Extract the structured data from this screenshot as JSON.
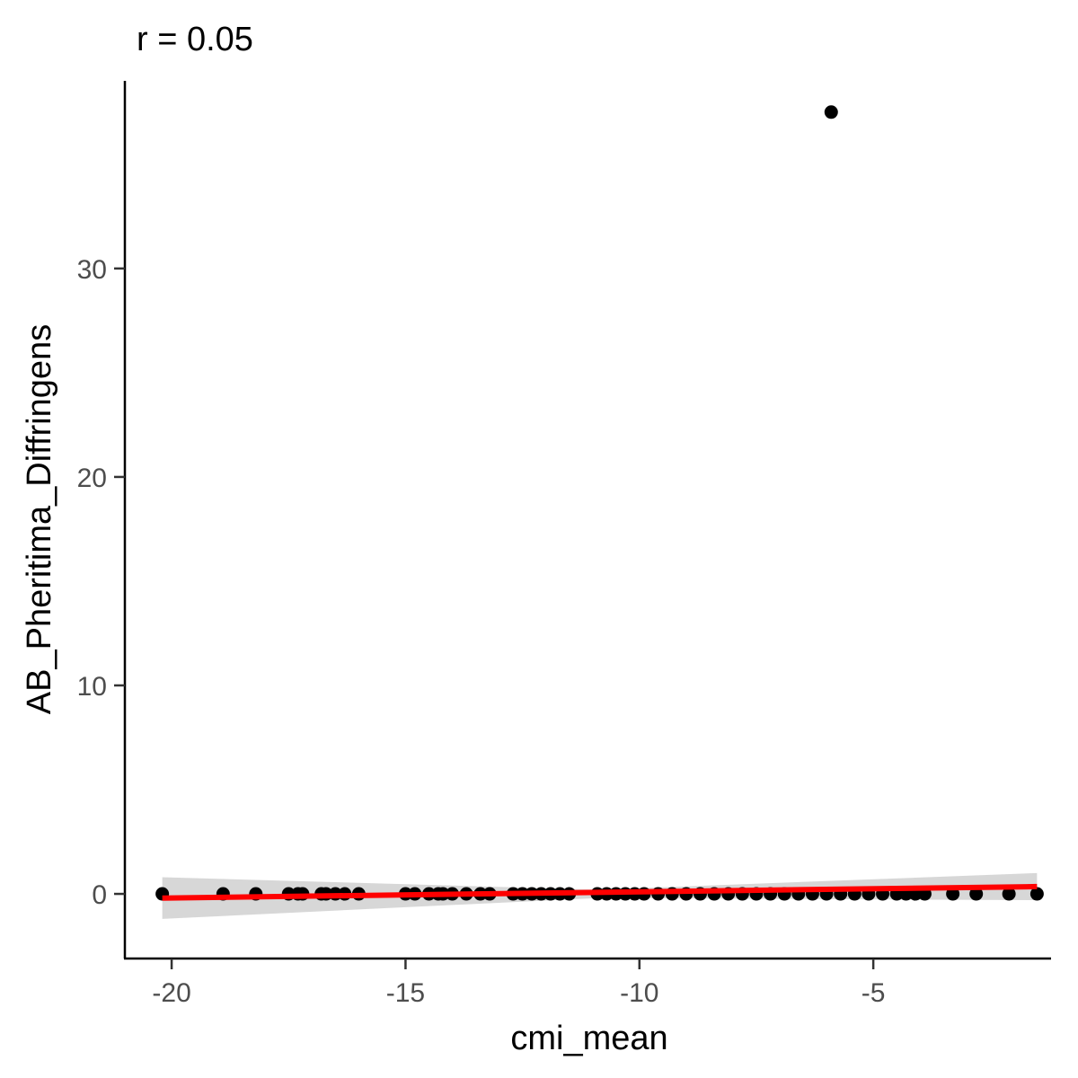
{
  "chart_data": {
    "type": "scatter",
    "title": "r = 0.05",
    "xlabel": "cmi_mean",
    "ylabel": "AB_Pheritima_Diffringens",
    "xlim": [
      -21.0,
      -1.2
    ],
    "ylim": [
      -3.1,
      39.0
    ],
    "xticks": [
      -20,
      -15,
      -10,
      -5
    ],
    "xtick_labels": [
      "-20",
      "-15",
      "-10",
      "-5"
    ],
    "yticks": [
      0,
      10,
      20,
      30
    ],
    "ytick_labels": [
      "0",
      "10",
      "20",
      "30"
    ],
    "grid": false,
    "legend": "none",
    "point_color": "#000000",
    "points": [
      {
        "x": -20.2,
        "y": 0
      },
      {
        "x": -18.9,
        "y": 0
      },
      {
        "x": -18.2,
        "y": 0
      },
      {
        "x": -17.5,
        "y": 0
      },
      {
        "x": -17.3,
        "y": 0
      },
      {
        "x": -17.2,
        "y": 0
      },
      {
        "x": -16.8,
        "y": 0
      },
      {
        "x": -16.7,
        "y": 0
      },
      {
        "x": -16.5,
        "y": 0
      },
      {
        "x": -16.3,
        "y": 0
      },
      {
        "x": -16.0,
        "y": 0
      },
      {
        "x": -15.0,
        "y": 0
      },
      {
        "x": -14.8,
        "y": 0
      },
      {
        "x": -14.5,
        "y": 0
      },
      {
        "x": -14.3,
        "y": 0
      },
      {
        "x": -14.2,
        "y": 0
      },
      {
        "x": -14.0,
        "y": 0
      },
      {
        "x": -13.7,
        "y": 0
      },
      {
        "x": -13.4,
        "y": 0
      },
      {
        "x": -13.2,
        "y": 0
      },
      {
        "x": -12.7,
        "y": 0
      },
      {
        "x": -12.5,
        "y": 0
      },
      {
        "x": -12.3,
        "y": 0
      },
      {
        "x": -12.1,
        "y": 0
      },
      {
        "x": -11.9,
        "y": 0
      },
      {
        "x": -11.7,
        "y": 0
      },
      {
        "x": -11.5,
        "y": 0
      },
      {
        "x": -10.9,
        "y": 0
      },
      {
        "x": -10.7,
        "y": 0
      },
      {
        "x": -10.5,
        "y": 0
      },
      {
        "x": -10.3,
        "y": 0
      },
      {
        "x": -10.1,
        "y": 0
      },
      {
        "x": -9.9,
        "y": 0
      },
      {
        "x": -9.6,
        "y": 0
      },
      {
        "x": -9.3,
        "y": 0
      },
      {
        "x": -9.0,
        "y": 0
      },
      {
        "x": -8.7,
        "y": 0
      },
      {
        "x": -8.4,
        "y": 0
      },
      {
        "x": -8.1,
        "y": 0
      },
      {
        "x": -7.8,
        "y": 0
      },
      {
        "x": -7.5,
        "y": 0
      },
      {
        "x": -7.2,
        "y": 0
      },
      {
        "x": -6.9,
        "y": 0
      },
      {
        "x": -6.6,
        "y": 0
      },
      {
        "x": -6.3,
        "y": 0
      },
      {
        "x": -6.0,
        "y": 0
      },
      {
        "x": -5.7,
        "y": 0
      },
      {
        "x": -5.4,
        "y": 0
      },
      {
        "x": -5.1,
        "y": 0
      },
      {
        "x": -4.8,
        "y": 0
      },
      {
        "x": -4.5,
        "y": 0
      },
      {
        "x": -4.3,
        "y": 0
      },
      {
        "x": -4.1,
        "y": 0
      },
      {
        "x": -3.9,
        "y": 0
      },
      {
        "x": -3.3,
        "y": 0
      },
      {
        "x": -2.8,
        "y": 0
      },
      {
        "x": -2.1,
        "y": 0
      },
      {
        "x": -1.5,
        "y": 0
      },
      {
        "x": -5.9,
        "y": 37.5
      }
    ],
    "fit_line": {
      "color": "#ff0000",
      "x": [
        -20.2,
        -1.5
      ],
      "y": [
        -0.2,
        0.35
      ]
    },
    "confidence_band": {
      "color": "#d3d3d3",
      "x": [
        -20.2,
        -10.9,
        -1.5
      ],
      "upper": [
        0.8,
        0.2,
        1.0
      ],
      "lower": [
        -1.2,
        -0.2,
        -0.3
      ]
    }
  }
}
